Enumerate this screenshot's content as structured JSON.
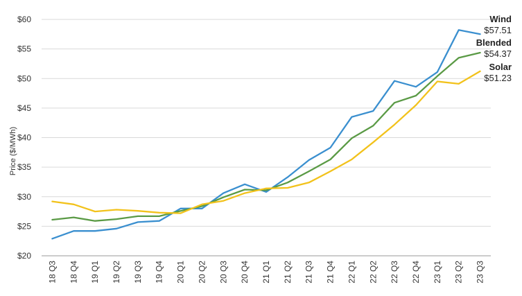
{
  "chart_data": {
    "type": "line",
    "ylabel": "Price ($/MWh)",
    "xlabel": "",
    "ylim": [
      20,
      60
    ],
    "y_ticks": [
      20,
      25,
      30,
      35,
      40,
      45,
      50,
      55,
      60
    ],
    "y_tick_labels": [
      "$20",
      "$25",
      "$30",
      "$35",
      "$40",
      "$45",
      "$50",
      "$55",
      "$60"
    ],
    "grid": "horizontal",
    "categories": [
      "18 Q3",
      "18 Q4",
      "19 Q1",
      "19 Q2",
      "19 Q3",
      "19 Q4",
      "20 Q1",
      "20 Q2",
      "20 Q3",
      "20 Q4",
      "21 Q1",
      "21 Q2",
      "21 Q3",
      "21 Q4",
      "22 Q1",
      "22 Q2",
      "22 Q3",
      "22 Q4",
      "23 Q1",
      "23 Q2",
      "23 Q3"
    ],
    "series": [
      {
        "name": "Wind",
        "end_label": "$57.51",
        "color": "#3a8fcf",
        "values": [
          22.9,
          24.2,
          24.2,
          24.6,
          25.7,
          25.9,
          28.0,
          28.0,
          30.6,
          32.1,
          30.8,
          33.3,
          36.2,
          38.3,
          43.5,
          44.5,
          49.6,
          48.6,
          51.1,
          58.2,
          57.51
        ]
      },
      {
        "name": "Blended",
        "end_label": "$54.37",
        "color": "#5a9a45",
        "values": [
          26.1,
          26.5,
          25.9,
          26.2,
          26.7,
          26.7,
          27.6,
          28.4,
          29.9,
          31.2,
          31.1,
          32.4,
          34.3,
          36.3,
          39.9,
          42.0,
          45.9,
          47.1,
          50.4,
          53.5,
          54.37
        ]
      },
      {
        "name": "Solar",
        "end_label": "$51.23",
        "color": "#f2c21b",
        "values": [
          29.2,
          28.7,
          27.5,
          27.8,
          27.6,
          27.3,
          27.2,
          28.7,
          29.3,
          30.6,
          31.4,
          31.5,
          32.4,
          34.3,
          36.3,
          39.2,
          42.2,
          45.5,
          49.5,
          49.1,
          51.23
        ]
      }
    ]
  }
}
